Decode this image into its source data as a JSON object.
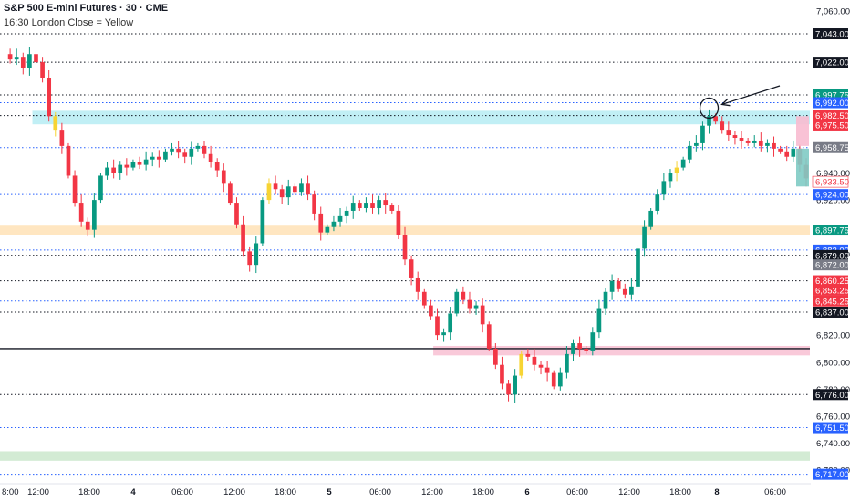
{
  "header": {
    "title": "S&P 500 E-mini Futures · 30 · CME",
    "subtitle": "16:30 London Close = Yellow"
  },
  "colors": {
    "up": "#089981",
    "down": "#f23645",
    "yellow": "#f7d433",
    "dotted_black": "#131722",
    "dotted_blue": "#2962ff",
    "zone_cyan": "#b2ebf2",
    "zone_orange": "#ffe0b2",
    "zone_pink": "#f8bbd0",
    "zone_green": "#c8e6c9"
  },
  "chart_data": {
    "type": "candlestick",
    "ylim": [
      6710,
      7068
    ],
    "y_ticks": [
      "7,060.00",
      "6,940.00",
      "6,920.00",
      "6,880.00",
      "6,820.00",
      "6,800.00",
      "6,780.00",
      "6,760.00",
      "6,740.00",
      "6,720.00"
    ],
    "x_ticks": [
      "8:00",
      "12:00",
      "18:00",
      "4",
      "06:00",
      "12:00",
      "18:00",
      "5",
      "06:00",
      "12:00",
      "18:00",
      "6",
      "06:00",
      "12:00",
      "18:00",
      "8",
      "06:00"
    ],
    "x_ticks_bold": [
      "4",
      "5",
      "6",
      "8"
    ],
    "levels": [
      {
        "price": 7043.0,
        "label": "7,043.00",
        "style": "dotted-black",
        "bg": "#131722",
        "fg": "#ffffff"
      },
      {
        "price": 7022.0,
        "label": "7,022.00",
        "style": "dotted-black",
        "bg": "#131722",
        "fg": "#ffffff"
      },
      {
        "price": 6997.75,
        "label": "6,997.75",
        "style": "dotted-black",
        "bg": "#089981",
        "fg": "#ffffff"
      },
      {
        "price": 6992.0,
        "label": "6,992.00",
        "style": "dotted-blue",
        "bg": "#2962ff",
        "fg": "#ffffff"
      },
      {
        "price": 6982.5,
        "label": "6,982.50",
        "style": "dotted-black",
        "bg": "#f23645",
        "fg": "#ffffff"
      },
      {
        "price": 6975.5,
        "label": "6,975.50",
        "style": "none",
        "bg": "#f23645",
        "fg": "#ffffff"
      },
      {
        "price": 6958.75,
        "label": "6,958.75",
        "style": "dotted-blue",
        "bg": "#787b86",
        "fg": "#ffffff"
      },
      {
        "price": 6933.5,
        "label": "6,933.50",
        "style": "none",
        "bg": "#ffffff",
        "fg": "#f23645"
      },
      {
        "price": 6924.0,
        "label": "6,924.00",
        "style": "dotted-blue",
        "bg": "#2962ff",
        "fg": "#ffffff"
      },
      {
        "price": 6897.75,
        "label": "6,897.75",
        "style": "none",
        "bg": "#089981",
        "fg": "#ffffff"
      },
      {
        "price": 6883.0,
        "label": "6,883.00",
        "style": "dotted-blue",
        "bg": "#2962ff",
        "fg": "#ffffff"
      },
      {
        "price": 6879.0,
        "label": "6,879.00",
        "style": "dotted-black",
        "bg": "#131722",
        "fg": "#ffffff"
      },
      {
        "price": 6872.0,
        "label": "6,872.00",
        "style": "none",
        "bg": "#787b86",
        "fg": "#ffffff"
      },
      {
        "price": 6860.25,
        "label": "6,860.25",
        "style": "dotted-black",
        "bg": "#f23645",
        "fg": "#ffffff"
      },
      {
        "price": 6853.25,
        "label": "6,853.25",
        "style": "none",
        "bg": "#f23645",
        "fg": "#ffffff"
      },
      {
        "price": 6845.25,
        "label": "6,845.25",
        "style": "dotted-blue",
        "bg": "#f23645",
        "fg": "#ffffff"
      },
      {
        "price": 6837.0,
        "label": "6,837.00",
        "style": "dotted-black",
        "bg": "#131722",
        "fg": "#ffffff"
      },
      {
        "price": 6776.0,
        "label": "6,776.00",
        "style": "dotted-black",
        "bg": "#131722",
        "fg": "#ffffff"
      },
      {
        "price": 6751.5,
        "label": "6,751.50",
        "style": "dotted-blue",
        "bg": "#2962ff",
        "fg": "#ffffff"
      },
      {
        "price": 6717.0,
        "label": "6,717.00",
        "style": "dotted-blue",
        "bg": "#2962ff",
        "fg": "#ffffff"
      }
    ],
    "solid_line": 6810.0,
    "zones": [
      {
        "name": "supply-zone-cyan",
        "from": 6976,
        "to": 6986,
        "x_from": 0.04,
        "color": "#b2ebf2"
      },
      {
        "name": "demand-zone-orange",
        "from": 6894,
        "to": 6901,
        "x_from": 0.0,
        "color": "#ffe0b2"
      },
      {
        "name": "zone-pink",
        "from": 6805,
        "to": 6812,
        "x_from": 0.535,
        "color": "#f8bbd0"
      },
      {
        "name": "zone-green",
        "from": 6727,
        "to": 6734,
        "x_from": 0.0,
        "color": "#c8e6c9"
      }
    ],
    "path": [
      7028,
      7024,
      7026,
      7018,
      7028,
      7022,
      7010,
      6982,
      6972,
      6960,
      6938,
      6918,
      6904,
      6898,
      6920,
      6938,
      6944,
      6940,
      6946,
      6944,
      6948,
      6946,
      6950,
      6952,
      6950,
      6956,
      6958,
      6955,
      6952,
      6958,
      6960,
      6954,
      6948,
      6942,
      6932,
      6918,
      6902,
      6882,
      6872,
      6888,
      6920,
      6932,
      6928,
      6922,
      6930,
      6926,
      6932,
      6924,
      6910,
      6896,
      6900,
      6904,
      6908,
      6912,
      6918,
      6914,
      6918,
      6914,
      6920,
      6916,
      6912,
      6894,
      6876,
      6862,
      6852,
      6842,
      6834,
      6820,
      6822,
      6836,
      6852,
      6846,
      6840,
      6842,
      6828,
      6810,
      6798,
      6784,
      6776,
      6790,
      6806,
      6804,
      6798,
      6796,
      6792,
      6782,
      6792,
      6806,
      6814,
      6810,
      6808,
      6822,
      6840,
      6852,
      6860,
      6854,
      6850,
      6856,
      6884,
      6900,
      6912,
      6924,
      6934,
      6940,
      6944,
      6950,
      6960,
      6962,
      6975,
      6982,
      6978,
      6972,
      6968,
      6966,
      6964,
      6962,
      6964,
      6960,
      6962,
      6958,
      6956,
      6952,
      6958,
      6946,
      6936
    ],
    "annotations": [
      {
        "type": "circle",
        "name": "peak-circle",
        "candle": 109
      },
      {
        "type": "arrow",
        "name": "peak-arrow"
      }
    ]
  }
}
